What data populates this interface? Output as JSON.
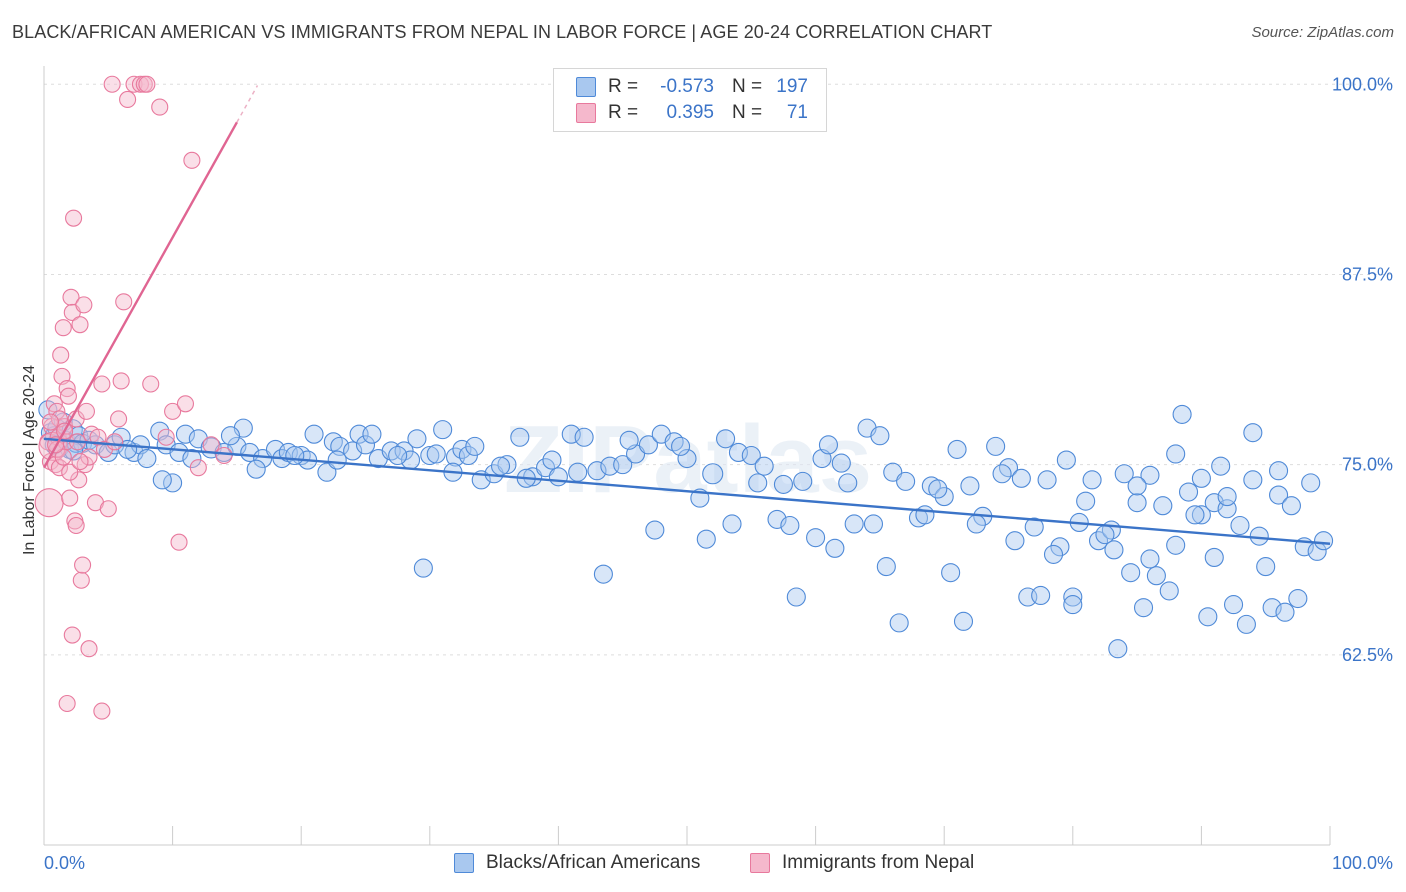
{
  "title": "BLACK/AFRICAN AMERICAN VS IMMIGRANTS FROM NEPAL IN LABOR FORCE | AGE 20-24 CORRELATION CHART",
  "source": "Source: ZipAtlas.com",
  "watermark": "ZIPatlas",
  "colors": {
    "blue_fill": "#a9c8ef",
    "blue_stroke": "#4f8ad8",
    "blue_line": "#3b74c8",
    "pink_fill": "#f5b8cc",
    "pink_stroke": "#e8799d",
    "pink_line": "#e06592",
    "grid": "#dddddd",
    "tick_text": "#3b74c8"
  },
  "legend": {
    "rows": [
      {
        "r_label": "R =",
        "r_value": "-0.573",
        "n_label": "N =",
        "n_value": "197"
      },
      {
        "r_label": "R =",
        "r_value": "0.395",
        "n_label": "N =",
        "n_value": "71"
      }
    ]
  },
  "bottom_legend": {
    "series1": "Blacks/African Americans",
    "series2": "Immigrants from Nepal"
  },
  "chart_data": {
    "type": "scatter",
    "title": "BLACK/AFRICAN AMERICAN VS IMMIGRANTS FROM NEPAL IN LABOR FORCE | AGE 20-24 CORRELATION CHART",
    "xlabel": "",
    "ylabel": "In Labor Force | Age 20-24",
    "xlim": [
      0,
      100
    ],
    "ylim": [
      50,
      101.2
    ],
    "x_tick_labels": [
      "0.0%",
      "100.0%"
    ],
    "y_ticks": [
      62.5,
      75.0,
      87.5,
      100.0
    ],
    "y_tick_labels": [
      "62.5%",
      "75.0%",
      "87.5%",
      "100.0%"
    ],
    "series": [
      {
        "name": "Blacks/African Americans",
        "R": -0.573,
        "N": 197,
        "trend": {
          "x": [
            0,
            100
          ],
          "y": [
            76.7,
            69.8
          ]
        },
        "points": [
          [
            0.3,
            78.6
          ],
          [
            0.5,
            77.1
          ],
          [
            0.8,
            76.9
          ],
          [
            1.0,
            77.4
          ],
          [
            1.2,
            76.1
          ],
          [
            1.5,
            77.8
          ],
          [
            1.7,
            76.6
          ],
          [
            2.0,
            76.0
          ],
          [
            2.2,
            77.3
          ],
          [
            2.5,
            76.4
          ],
          [
            2.7,
            76.9
          ],
          [
            3.0,
            76.4
          ],
          [
            3.5,
            76.6
          ],
          [
            4.0,
            76.3
          ],
          [
            5.0,
            75.8
          ],
          [
            5.5,
            76.3
          ],
          [
            6.0,
            76.8
          ],
          [
            7.0,
            75.8
          ],
          [
            7.5,
            76.3
          ],
          [
            8.0,
            75.4
          ],
          [
            9.0,
            77.2
          ],
          [
            9.5,
            76.3
          ],
          [
            10.0,
            73.8
          ],
          [
            10.5,
            75.8
          ],
          [
            11.0,
            77.0
          ],
          [
            12.0,
            76.7
          ],
          [
            13.0,
            76.1
          ],
          [
            14.0,
            75.8
          ],
          [
            15.0,
            76.2
          ],
          [
            15.5,
            77.4
          ],
          [
            16.0,
            75.8
          ],
          [
            17.0,
            75.4
          ],
          [
            18.0,
            76.0
          ],
          [
            18.5,
            75.4
          ],
          [
            19.0,
            75.8
          ],
          [
            20.0,
            75.6
          ],
          [
            20.5,
            75.3
          ],
          [
            21.0,
            77.0
          ],
          [
            22.0,
            74.5
          ],
          [
            22.5,
            76.5
          ],
          [
            23.0,
            76.2
          ],
          [
            24.0,
            75.9
          ],
          [
            24.5,
            77.0
          ],
          [
            25.0,
            76.3
          ],
          [
            26.0,
            75.4
          ],
          [
            27.0,
            75.9
          ],
          [
            28.0,
            75.9
          ],
          [
            28.5,
            75.3
          ],
          [
            29.0,
            76.7
          ],
          [
            30.0,
            75.6
          ],
          [
            30.5,
            75.7
          ],
          [
            31.0,
            77.3
          ],
          [
            32.0,
            75.5
          ],
          [
            32.5,
            76.0
          ],
          [
            33.0,
            75.6
          ],
          [
            34.0,
            74.0
          ],
          [
            35.0,
            74.4
          ],
          [
            36.0,
            75.0
          ],
          [
            37.0,
            76.8
          ],
          [
            38.0,
            74.2
          ],
          [
            39.0,
            74.8
          ],
          [
            40.0,
            74.2
          ],
          [
            41.0,
            77.0
          ],
          [
            42.0,
            76.8
          ],
          [
            43.0,
            74.6
          ],
          [
            44.0,
            74.9
          ],
          [
            45.0,
            75.0
          ],
          [
            46.0,
            75.7
          ],
          [
            47.0,
            76.3
          ],
          [
            48.0,
            77.0
          ],
          [
            49.0,
            76.5
          ],
          [
            50.0,
            75.4
          ],
          [
            51.0,
            72.8
          ],
          [
            52.0,
            74.4
          ],
          [
            53.0,
            76.7
          ],
          [
            54.0,
            75.8
          ],
          [
            55.0,
            75.6
          ],
          [
            56.0,
            74.9
          ],
          [
            57.0,
            71.4
          ],
          [
            58.0,
            71.0
          ],
          [
            59.0,
            73.9
          ],
          [
            60.0,
            70.2
          ],
          [
            60.5,
            75.4
          ],
          [
            61.0,
            76.3
          ],
          [
            62.0,
            75.1
          ],
          [
            63.0,
            71.1
          ],
          [
            64.0,
            77.4
          ],
          [
            65.0,
            76.9
          ],
          [
            66.0,
            74.5
          ],
          [
            67.0,
            73.9
          ],
          [
            68.0,
            71.5
          ],
          [
            69.0,
            73.6
          ],
          [
            70.0,
            72.9
          ],
          [
            71.0,
            76.0
          ],
          [
            72.0,
            73.6
          ],
          [
            73.0,
            71.6
          ],
          [
            74.0,
            76.2
          ],
          [
            75.0,
            74.8
          ],
          [
            76.0,
            74.1
          ],
          [
            77.0,
            70.9
          ],
          [
            78.0,
            74.0
          ],
          [
            79.0,
            69.6
          ],
          [
            80.0,
            66.3
          ],
          [
            81.0,
            72.6
          ],
          [
            82.0,
            70.0
          ],
          [
            83.0,
            70.7
          ],
          [
            84.0,
            74.4
          ],
          [
            85.0,
            72.5
          ],
          [
            86.0,
            74.3
          ],
          [
            87.0,
            72.3
          ],
          [
            88.0,
            69.7
          ],
          [
            89.0,
            73.2
          ],
          [
            90.0,
            71.7
          ],
          [
            91.0,
            72.5
          ],
          [
            92.0,
            72.1
          ],
          [
            93.0,
            71.0
          ],
          [
            94.0,
            74.0
          ],
          [
            95.0,
            68.3
          ],
          [
            96.0,
            73.0
          ],
          [
            97.0,
            72.3
          ],
          [
            98.0,
            69.6
          ],
          [
            99.0,
            69.3
          ],
          [
            99.5,
            70.0
          ],
          [
            0.8,
            76.3
          ],
          [
            2.3,
            75.9
          ],
          [
            6.5,
            76.0
          ],
          [
            9.2,
            74.0
          ],
          [
            11.5,
            75.4
          ],
          [
            14.5,
            76.9
          ],
          [
            16.5,
            74.7
          ],
          [
            19.5,
            75.6
          ],
          [
            22.8,
            75.3
          ],
          [
            25.5,
            77.0
          ],
          [
            27.5,
            75.6
          ],
          [
            29.5,
            68.2
          ],
          [
            31.8,
            74.5
          ],
          [
            33.5,
            76.2
          ],
          [
            35.5,
            74.9
          ],
          [
            37.5,
            74.1
          ],
          [
            39.5,
            75.3
          ],
          [
            41.5,
            74.5
          ],
          [
            43.5,
            67.8
          ],
          [
            45.5,
            76.6
          ],
          [
            47.5,
            70.7
          ],
          [
            49.5,
            76.2
          ],
          [
            51.5,
            70.1
          ],
          [
            53.5,
            71.1
          ],
          [
            55.5,
            73.8
          ],
          [
            57.5,
            73.7
          ],
          [
            58.5,
            66.3
          ],
          [
            61.5,
            69.5
          ],
          [
            62.5,
            73.8
          ],
          [
            64.5,
            71.1
          ],
          [
            65.5,
            68.3
          ],
          [
            66.5,
            64.6
          ],
          [
            68.5,
            71.7
          ],
          [
            69.5,
            73.4
          ],
          [
            70.5,
            67.9
          ],
          [
            71.5,
            64.7
          ],
          [
            72.5,
            71.1
          ],
          [
            74.5,
            74.4
          ],
          [
            75.5,
            70.0
          ],
          [
            76.5,
            66.3
          ],
          [
            77.5,
            66.4
          ],
          [
            78.5,
            69.1
          ],
          [
            79.5,
            75.3
          ],
          [
            80.5,
            71.2
          ],
          [
            81.5,
            74.0
          ],
          [
            82.5,
            70.4
          ],
          [
            83.5,
            62.9
          ],
          [
            84.5,
            67.9
          ],
          [
            85.5,
            65.6
          ],
          [
            86.5,
            67.7
          ],
          [
            87.5,
            66.7
          ],
          [
            88.5,
            78.3
          ],
          [
            89.5,
            71.7
          ],
          [
            90.5,
            65.0
          ],
          [
            91.5,
            74.9
          ],
          [
            92.5,
            65.8
          ],
          [
            93.5,
            64.5
          ],
          [
            94.5,
            70.3
          ],
          [
            95.5,
            65.6
          ],
          [
            96.5,
            65.3
          ],
          [
            97.5,
            66.2
          ],
          [
            98.5,
            73.8
          ],
          [
            83.2,
            69.4
          ],
          [
            80.0,
            65.8
          ],
          [
            86.0,
            68.8
          ],
          [
            88.0,
            75.7
          ],
          [
            90.0,
            74.1
          ],
          [
            92.0,
            72.9
          ],
          [
            94.0,
            77.1
          ],
          [
            96.0,
            74.6
          ],
          [
            91.0,
            68.9
          ],
          [
            85.0,
            73.6
          ]
        ]
      },
      {
        "name": "Immigrants from Nepal",
        "R": 0.395,
        "N": 71,
        "trend": {
          "x": [
            0,
            15
          ],
          "y": [
            74.8,
            97.5
          ]
        },
        "points": [
          [
            0.3,
            76.5
          ],
          [
            0.4,
            72.5
          ],
          [
            0.5,
            75.2
          ],
          [
            0.6,
            77.5
          ],
          [
            0.7,
            76.2
          ],
          [
            0.8,
            79.0
          ],
          [
            0.9,
            75.0
          ],
          [
            1.0,
            78.5
          ],
          [
            1.1,
            76.8
          ],
          [
            1.2,
            74.8
          ],
          [
            1.3,
            82.2
          ],
          [
            1.4,
            80.8
          ],
          [
            1.5,
            84.0
          ],
          [
            1.6,
            77.5
          ],
          [
            1.7,
            76.5
          ],
          [
            1.8,
            80.0
          ],
          [
            1.9,
            79.5
          ],
          [
            2.0,
            72.8
          ],
          [
            2.1,
            86.0
          ],
          [
            2.2,
            85.0
          ],
          [
            2.3,
            91.2
          ],
          [
            2.4,
            71.3
          ],
          [
            2.5,
            78.0
          ],
          [
            2.6,
            76.5
          ],
          [
            2.7,
            74.0
          ],
          [
            2.8,
            84.2
          ],
          [
            2.9,
            67.4
          ],
          [
            3.0,
            68.4
          ],
          [
            3.1,
            85.5
          ],
          [
            3.2,
            75.0
          ],
          [
            3.3,
            78.5
          ],
          [
            3.5,
            75.5
          ],
          [
            3.7,
            77.0
          ],
          [
            4.0,
            72.5
          ],
          [
            4.2,
            76.8
          ],
          [
            4.5,
            80.3
          ],
          [
            4.7,
            76.0
          ],
          [
            5.0,
            72.1
          ],
          [
            5.3,
            100.0
          ],
          [
            5.5,
            76.5
          ],
          [
            5.8,
            78.0
          ],
          [
            6.0,
            80.5
          ],
          [
            6.2,
            85.7
          ],
          [
            6.5,
            99.0
          ],
          [
            7.0,
            100.0
          ],
          [
            7.5,
            100.0
          ],
          [
            7.8,
            100.0
          ],
          [
            8.0,
            100.0
          ],
          [
            8.3,
            80.3
          ],
          [
            9.0,
            98.5
          ],
          [
            9.5,
            76.8
          ],
          [
            10.0,
            78.5
          ],
          [
            11.0,
            79.0
          ],
          [
            12.0,
            74.8
          ],
          [
            13.0,
            76.3
          ],
          [
            14.0,
            75.6
          ],
          [
            10.5,
            69.9
          ],
          [
            11.5,
            95.0
          ],
          [
            1.8,
            59.3
          ],
          [
            2.2,
            63.8
          ],
          [
            2.5,
            71.0
          ],
          [
            1.0,
            76.0
          ],
          [
            1.5,
            75.5
          ],
          [
            2.0,
            74.5
          ],
          [
            2.8,
            75.2
          ],
          [
            3.5,
            62.9
          ],
          [
            4.5,
            58.8
          ],
          [
            1.2,
            78.0
          ],
          [
            1.6,
            77.2
          ],
          [
            0.9,
            76.3
          ],
          [
            0.5,
            77.8
          ]
        ]
      }
    ]
  }
}
